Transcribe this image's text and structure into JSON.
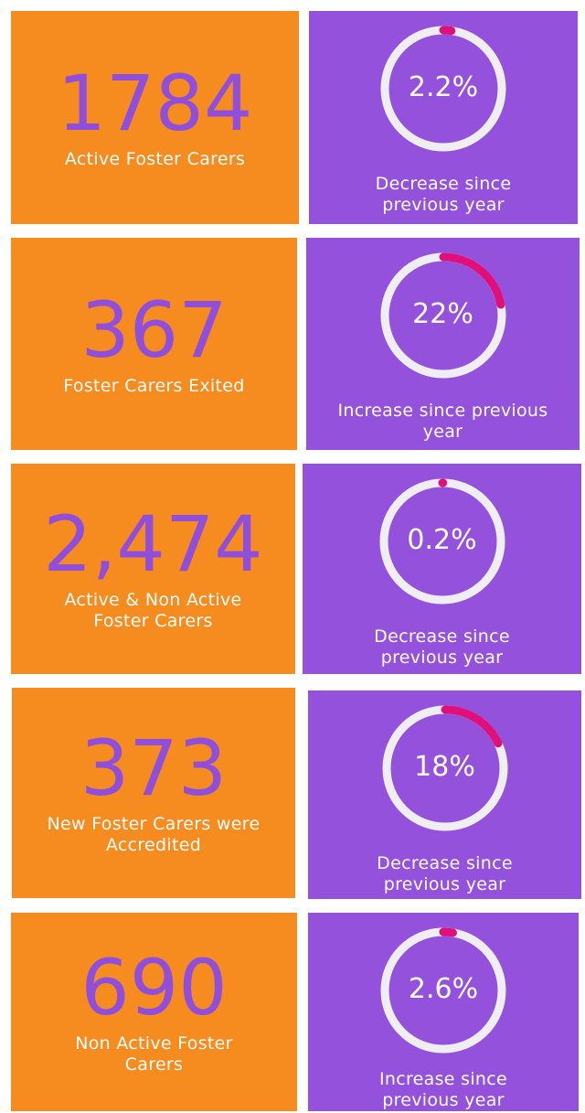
{
  "cards": [
    {
      "value": "1784",
      "label": "Active Foster Carers",
      "percent": 2.2,
      "percent_label": "2.2%",
      "caption": "Decrease since previous year"
    },
    {
      "value": "367",
      "label": "Foster Carers Exited",
      "percent": 22,
      "percent_label": "22%",
      "caption": "Increase since previous year"
    },
    {
      "value": "2,474",
      "label": "Active & Non Active Foster Carers",
      "percent": 0.2,
      "percent_label": "0.2%",
      "caption": "Decrease since previous year"
    },
    {
      "value": "373",
      "label": "New Foster Carers were Accredited",
      "percent": 18,
      "percent_label": "18%",
      "caption": "Decrease since previous year"
    },
    {
      "value": "690",
      "label": "Non Active Foster Carers",
      "percent": 2.6,
      "percent_label": "2.6%",
      "caption": "Increase since previous year"
    }
  ]
}
